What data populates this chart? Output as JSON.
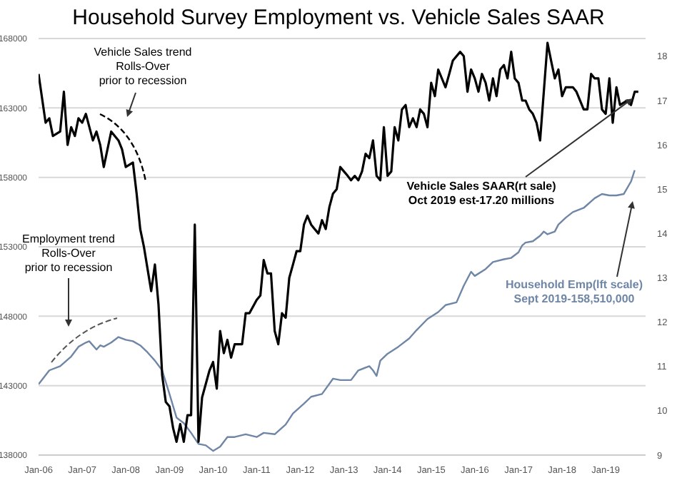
{
  "chart_data": {
    "type": "line",
    "title": "Household Survey Employment vs. Vehicle Sales SAAR",
    "grid": "y",
    "marker": "none",
    "line_style": "solid",
    "xlim": [
      "2006-01",
      "2019-12"
    ],
    "xticks": [
      {
        "value": "2006-01",
        "label": "Jan-06"
      },
      {
        "value": "2007-01",
        "label": "Jan-07"
      },
      {
        "value": "2008-01",
        "label": "Jan-08"
      },
      {
        "value": "2009-01",
        "label": "Jan-09"
      },
      {
        "value": "2010-01",
        "label": "Jan-10"
      },
      {
        "value": "2011-01",
        "label": "Jan-11"
      },
      {
        "value": "2012-01",
        "label": "Jan-12"
      },
      {
        "value": "2013-01",
        "label": "Jan-13"
      },
      {
        "value": "2014-01",
        "label": "Jan-14"
      },
      {
        "value": "2015-01",
        "label": "Jan-15"
      },
      {
        "value": "2016-01",
        "label": "Jan-16"
      },
      {
        "value": "2017-01",
        "label": "Jan-17"
      },
      {
        "value": "2018-01",
        "label": "Jan-18"
      },
      {
        "value": "2019-01",
        "label": "Jan-19"
      }
    ],
    "ylim": [
      138000,
      168000
    ],
    "yticks": [
      138000,
      143000,
      148000,
      153000,
      158000,
      163000,
      168000
    ],
    "y2lim": [
      9,
      18.4
    ],
    "y2ticks": [
      9,
      10,
      11,
      12,
      13,
      14,
      15,
      16,
      17,
      18
    ],
    "series": [
      {
        "color": "#6f86a6",
        "x": [
          "2006-01",
          "2006-04",
          "2006-07",
          "2006-10",
          "2006-12",
          "2007-02",
          "2007-03",
          "2007-05",
          "2007-06",
          "2007-07",
          "2007-09",
          "2007-11",
          "2008-01",
          "2008-03",
          "2008-05",
          "2008-07",
          "2008-09",
          "2008-11",
          "2009-01",
          "2009-03",
          "2009-05",
          "2009-07",
          "2009-09",
          "2009-11",
          "2010-01",
          "2010-03",
          "2010-05",
          "2010-07",
          "2010-10",
          "2011-01",
          "2011-03",
          "2011-06",
          "2011-09",
          "2011-11",
          "2012-02",
          "2012-04",
          "2012-07",
          "2012-10",
          "2012-12",
          "2013-03",
          "2013-05",
          "2013-08",
          "2013-09",
          "2013-10",
          "2013-11",
          "2014-01",
          "2014-04",
          "2014-07",
          "2014-09",
          "2014-12",
          "2015-03",
          "2015-05",
          "2015-08",
          "2015-10",
          "2015-12",
          "2016-01",
          "2016-04",
          "2016-06",
          "2016-09",
          "2016-11",
          "2017-01",
          "2017-02",
          "2017-03",
          "2017-05",
          "2017-07",
          "2017-08",
          "2017-09",
          "2017-11",
          "2017-12",
          "2018-02",
          "2018-04",
          "2018-07",
          "2018-10",
          "2018-12",
          "2019-02",
          "2019-04",
          "2019-06",
          "2019-08",
          "2019-09"
        ],
        "values": [
          143100,
          144100,
          144400,
          145100,
          145800,
          146100,
          146200,
          145600,
          145900,
          145800,
          146100,
          146500,
          146300,
          146200,
          145900,
          145400,
          144800,
          144100,
          142400,
          140700,
          140300,
          139600,
          138800,
          138700,
          138300,
          138600,
          139300,
          139300,
          139500,
          139300,
          139600,
          139500,
          140200,
          141000,
          141700,
          142200,
          142400,
          143500,
          143400,
          143400,
          144100,
          144400,
          144100,
          143700,
          144800,
          145300,
          145800,
          146400,
          147000,
          147800,
          148300,
          148800,
          149000,
          150200,
          151200,
          150900,
          151400,
          151900,
          152100,
          152200,
          152600,
          153100,
          153300,
          153400,
          153800,
          154100,
          153900,
          154100,
          154600,
          155100,
          155500,
          155800,
          156500,
          156800,
          156700,
          156700,
          156800,
          157700,
          158510
        ]
      },
      {
        "color": "#000000",
        "axis": "y2",
        "x": [
          "2006-01",
          "2006-03",
          "2006-04",
          "2006-05",
          "2006-07",
          "2006-08",
          "2006-09",
          "2006-10",
          "2006-11",
          "2006-12",
          "2007-01",
          "2007-02",
          "2007-04",
          "2007-05",
          "2007-06",
          "2007-07",
          "2007-09",
          "2007-11",
          "2007-12",
          "2008-01",
          "2008-03",
          "2008-04",
          "2008-05",
          "2008-06",
          "2008-08",
          "2008-09",
          "2008-10",
          "2008-11",
          "2008-12",
          "2009-01",
          "2009-02",
          "2009-03",
          "2009-04",
          "2009-05",
          "2009-06",
          "2009-07",
          "2009-08",
          "2009-09",
          "2009-10",
          "2009-12",
          "2010-01",
          "2010-02",
          "2010-03",
          "2010-04",
          "2010-05",
          "2010-06",
          "2010-07",
          "2010-09",
          "2010-10",
          "2010-11",
          "2011-01",
          "2011-02",
          "2011-03",
          "2011-04",
          "2011-05",
          "2011-06",
          "2011-07",
          "2011-08",
          "2011-09",
          "2011-10",
          "2011-11",
          "2011-12",
          "2012-01",
          "2012-02",
          "2012-03",
          "2012-04",
          "2012-05",
          "2012-06",
          "2012-07",
          "2012-08",
          "2012-09",
          "2012-10",
          "2012-11",
          "2012-12",
          "2013-01",
          "2013-02",
          "2013-03",
          "2013-04",
          "2013-05",
          "2013-06",
          "2013-07",
          "2013-08",
          "2013-09",
          "2013-10",
          "2013-11",
          "2013-12",
          "2014-01",
          "2014-02",
          "2014-03",
          "2014-04",
          "2014-05",
          "2014-06",
          "2014-07",
          "2014-08",
          "2014-09",
          "2014-10",
          "2014-11",
          "2014-12",
          "2015-01",
          "2015-02",
          "2015-03",
          "2015-05",
          "2015-06",
          "2015-07",
          "2015-09",
          "2015-10",
          "2015-11",
          "2015-12",
          "2016-01",
          "2016-02",
          "2016-03",
          "2016-04",
          "2016-05",
          "2016-06",
          "2016-07",
          "2016-08",
          "2016-09",
          "2016-10",
          "2016-11",
          "2016-12",
          "2017-01",
          "2017-02",
          "2017-03",
          "2017-04",
          "2017-05",
          "2017-06",
          "2017-07",
          "2017-09",
          "2017-10",
          "2017-11",
          "2017-12",
          "2018-01",
          "2018-02",
          "2018-03",
          "2018-04",
          "2018-05",
          "2018-07",
          "2018-08",
          "2018-09",
          "2018-10",
          "2018-11",
          "2018-12",
          "2019-01",
          "2019-02",
          "2019-03",
          "2019-04",
          "2019-05",
          "2019-07",
          "2019-08",
          "2019-09",
          "2019-10"
        ],
        "values": [
          17.6,
          16.5,
          16.6,
          16.2,
          16.3,
          17.2,
          16.0,
          16.4,
          16.2,
          16.6,
          16.5,
          16.7,
          16.1,
          16.3,
          16.0,
          15.5,
          16.3,
          16.1,
          15.9,
          15.5,
          15.6,
          14.9,
          14.1,
          13.7,
          12.7,
          13.3,
          12.4,
          10.8,
          10.2,
          10.1,
          9.6,
          9.3,
          9.7,
          9.3,
          9.9,
          9.9,
          14.2,
          9.3,
          10.3,
          10.9,
          11.1,
          10.5,
          11.8,
          11.3,
          11.6,
          11.2,
          11.5,
          11.5,
          12.2,
          12.2,
          12.5,
          12.6,
          13.4,
          13.1,
          13.1,
          11.8,
          11.5,
          12.2,
          12.1,
          13.0,
          13.3,
          13.6,
          13.6,
          14.2,
          14.4,
          14.2,
          14.1,
          14.0,
          14.3,
          14.1,
          14.6,
          14.9,
          15.0,
          15.5,
          15.4,
          15.3,
          15.2,
          15.3,
          15.2,
          15.4,
          15.8,
          15.7,
          16.1,
          15.3,
          15.2,
          16.4,
          15.3,
          15.4,
          16.4,
          16.1,
          16.8,
          16.9,
          16.4,
          16.6,
          16.4,
          16.8,
          16.7,
          16.4,
          17.4,
          17.1,
          17.7,
          17.3,
          17.6,
          17.9,
          18.1,
          18.0,
          17.2,
          17.7,
          17.5,
          17.2,
          17.6,
          17.4,
          17.0,
          17.5,
          17.1,
          17.7,
          17.8,
          17.5,
          18.1,
          17.5,
          17.4,
          17.0,
          17.0,
          16.8,
          16.7,
          16.5,
          16.1,
          18.3,
          17.9,
          17.5,
          17.7,
          17.1,
          17.3,
          17.3,
          17.3,
          17.2,
          16.8,
          16.8,
          17.6,
          17.5,
          17.5,
          16.8,
          16.7,
          17.5,
          16.5,
          17.3,
          16.9,
          17.0,
          16.9,
          17.2,
          17.2
        ]
      }
    ],
    "annotations": [
      "Vehicle Sales  trend\nRolls-Over\nprior to recession",
      "Employment  trend\nRolls-Over\nprior to recession",
      "Vehicle Sales SAAR(rt sale)\nOct 2019 est-17.20  millions",
      "Household Emp(lft scale)\nSept 2019-158,510,000"
    ]
  }
}
